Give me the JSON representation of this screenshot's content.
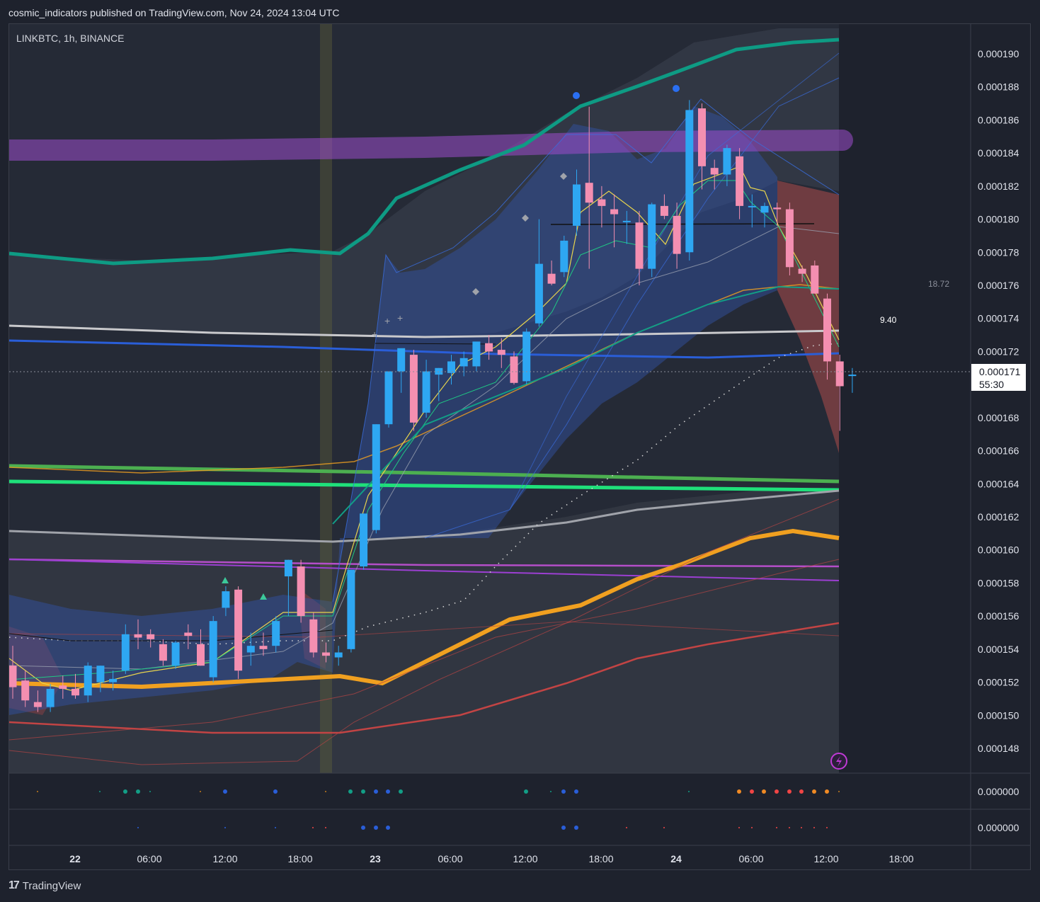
{
  "header": {
    "published": "cosmic_indicators published on TradingView.com, Nov 24, 2024 13:04 UTC"
  },
  "symbol": {
    "label": "LINKBTC, 1h, BINANCE"
  },
  "price_axis": {
    "ticks": [
      "0.000190",
      "0.000188",
      "0.000186",
      "0.000184",
      "0.000182",
      "0.000180",
      "0.000178",
      "0.000176",
      "0.000174",
      "0.000172",
      "0.000168",
      "0.000166",
      "0.000164",
      "0.000162",
      "0.000160",
      "0.000158",
      "0.000156",
      "0.000154",
      "0.000152",
      "0.000150",
      "0.000148"
    ],
    "current_price": "0.000171",
    "countdown": "55:30",
    "indicator_labels": [
      "18.72",
      "9.40"
    ]
  },
  "sub_panes": [
    {
      "axis_label": "0.000000"
    },
    {
      "axis_label": "0.000000"
    }
  ],
  "time_axis": {
    "ticks": [
      "22",
      "06:00",
      "12:00",
      "18:00",
      "23",
      "06:00",
      "12:00",
      "18:00",
      "24",
      "06:00",
      "12:00",
      "18:00"
    ]
  },
  "footer": {
    "brand": "TradingView"
  },
  "colors": {
    "up": "#2ea7f2",
    "down": "#f48fb1",
    "teal_line": "#0e9b84",
    "orange_line": "#f0a020",
    "green_line": "#1fe07a",
    "purple_band": "#9c4dcc",
    "background": "#1e222d"
  },
  "chart_data": {
    "type": "candlestick",
    "symbol": "LINKBTC",
    "interval": "1h",
    "exchange": "BINANCE",
    "ylim": [
      0.0001468,
      0.0001915
    ],
    "candles": [
      [
        0.000153,
        0.0001542,
        0.000151,
        0.0001517
      ],
      [
        0.0001521,
        0.0001527,
        0.0001505,
        0.0001509
      ],
      [
        0.0001508,
        0.0001515,
        0.0001502,
        0.0001505
      ],
      [
        0.0001505,
        0.0001519,
        0.0001502,
        0.0001516
      ],
      [
        0.0001518,
        0.0001524,
        0.000151,
        0.0001516
      ],
      [
        0.0001516,
        0.0001525,
        0.000151,
        0.0001512
      ],
      [
        0.0001512,
        0.0001532,
        0.0001508,
        0.000153
      ],
      [
        0.000152,
        0.000153,
        0.0001514,
        0.000153
      ],
      [
        0.000152,
        0.0001527,
        0.0001515,
        0.0001522
      ],
      [
        0.0001527,
        0.0001555,
        0.0001525,
        0.0001549
      ],
      [
        0.0001549,
        0.0001558,
        0.000154,
        0.0001547
      ],
      [
        0.0001549,
        0.0001552,
        0.0001541,
        0.0001546
      ],
      [
        0.0001543,
        0.0001546,
        0.000153,
        0.0001533
      ],
      [
        0.000153,
        0.0001545,
        0.0001528,
        0.0001544
      ],
      [
        0.000155,
        0.0001555,
        0.000154,
        0.0001548
      ],
      [
        0.0001543,
        0.0001552,
        0.000153,
        0.000153
      ],
      [
        0.0001523,
        0.000156,
        0.000152,
        0.0001557
      ],
      [
        0.0001565,
        0.0001578,
        0.000156,
        0.0001575
      ],
      [
        0.0001576,
        0.0001578,
        0.0001522,
        0.0001527
      ],
      [
        0.0001538,
        0.000155,
        0.000153,
        0.0001542
      ],
      [
        0.0001542,
        0.000155,
        0.0001536,
        0.000154
      ],
      [
        0.0001542,
        0.000156,
        0.0001538,
        0.0001557
      ],
      [
        0.0001584,
        0.0001594,
        0.000156,
        0.0001594
      ],
      [
        0.000159,
        0.0001594,
        0.0001556,
        0.000156
      ],
      [
        0.0001558,
        0.0001562,
        0.0001535,
        0.0001538
      ],
      [
        0.0001538,
        0.0001544,
        0.0001532,
        0.0001536
      ],
      [
        0.0001535,
        0.0001542,
        0.000153,
        0.0001538
      ],
      [
        0.000154,
        0.0001588,
        0.0001538,
        0.0001588
      ],
      [
        0.000159,
        0.0001622,
        0.0001588,
        0.0001622
      ],
      [
        0.0001612,
        0.0001676,
        0.000161,
        0.0001676
      ],
      [
        0.0001676,
        0.0001708,
        0.0001674,
        0.0001708
      ],
      [
        0.0001708,
        0.000172,
        0.0001695,
        0.0001722
      ],
      [
        0.0001718,
        0.0001721,
        0.0001672,
        0.0001677
      ],
      [
        0.0001683,
        0.0001715,
        0.000168,
        0.0001708
      ],
      [
        0.0001706,
        0.000171,
        0.000169,
        0.000171
      ],
      [
        0.0001707,
        0.0001718,
        0.00017,
        0.0001714
      ],
      [
        0.0001711,
        0.000172,
        0.0001705,
        0.0001716
      ],
      [
        0.0001711,
        0.0001725,
        0.0001708,
        0.0001726
      ],
      [
        0.0001725,
        0.000173,
        0.0001715,
        0.000172
      ],
      [
        0.0001721,
        0.0001728,
        0.000171,
        0.0001718
      ],
      [
        0.0001717,
        0.000172,
        0.00017,
        0.0001701
      ],
      [
        0.0001702,
        0.0001734,
        0.00017,
        0.0001732
      ],
      [
        0.0001737,
        0.00018,
        0.0001735,
        0.0001773
      ],
      [
        0.0001767,
        0.0001775,
        0.000176,
        0.0001761
      ],
      [
        0.0001768,
        0.000179,
        0.0001765,
        0.0001787
      ],
      [
        0.0001796,
        0.000183,
        0.000179,
        0.0001821
      ],
      [
        0.0001822,
        0.0001868,
        0.000177,
        0.000181
      ],
      [
        0.0001812,
        0.000182,
        0.0001795,
        0.0001808
      ],
      [
        0.0001806,
        0.0001815,
        0.0001783,
        0.0001803
      ],
      [
        0.0001799,
        0.0001805,
        0.0001785,
        0.0001799
      ],
      [
        0.0001798,
        0.0001805,
        0.000176,
        0.000177
      ],
      [
        0.000177,
        0.000181,
        0.0001765,
        0.0001809
      ],
      [
        0.0001808,
        0.0001815,
        0.00018,
        0.0001802
      ],
      [
        0.0001802,
        0.000181,
        0.000177,
        0.0001779
      ],
      [
        0.000178,
        0.0001872,
        0.0001775,
        0.0001866
      ],
      [
        0.0001867,
        0.000187,
        0.0001818,
        0.0001832
      ],
      [
        0.0001831,
        0.0001836,
        0.0001818,
        0.0001827
      ],
      [
        0.0001827,
        0.0001845,
        0.000182,
        0.0001843
      ],
      [
        0.0001838,
        0.0001843,
        0.00018,
        0.0001808
      ],
      [
        0.0001808,
        0.0001815,
        0.0001795,
        0.0001808
      ],
      [
        0.0001804,
        0.000181,
        0.0001795,
        0.0001808
      ],
      [
        0.0001807,
        0.000181,
        0.0001796,
        0.0001806
      ],
      [
        0.0001806,
        0.000181,
        0.0001766,
        0.0001771
      ],
      [
        0.000177,
        0.0001772,
        0.0001762,
        0.0001767
      ],
      [
        0.0001772,
        0.0001775,
        0.0001755,
        0.0001755
      ],
      [
        0.0001752,
        0.0001755,
        0.0001703,
        0.0001714
      ],
      [
        0.0001714,
        0.0001718,
        0.0001672,
        0.0001699
      ],
      [
        0.0001706,
        0.000171,
        0.0001695,
        0.0001706
      ]
    ]
  }
}
